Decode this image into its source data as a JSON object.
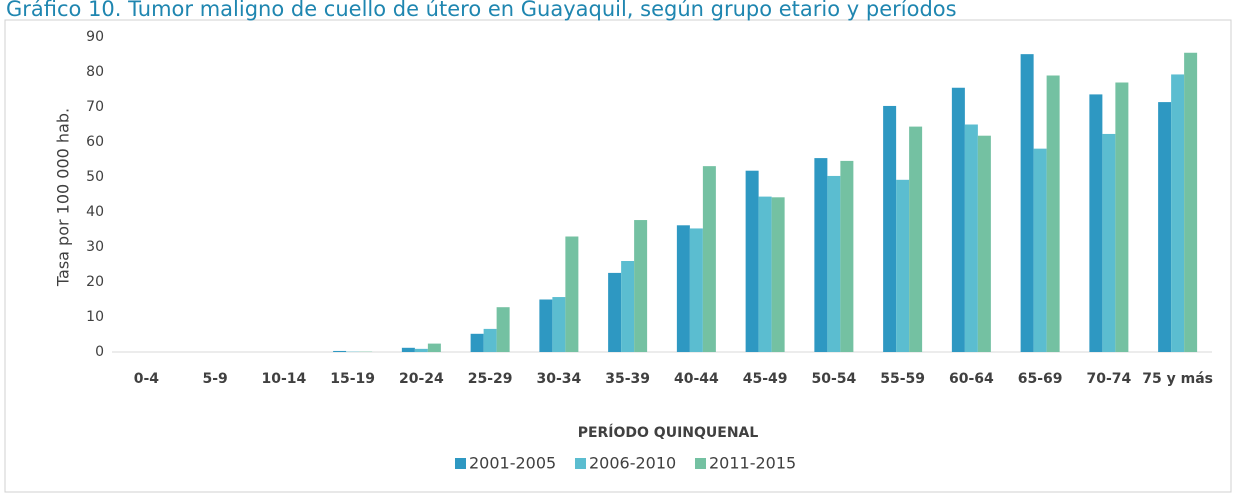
{
  "chart_data": {
    "type": "bar",
    "title": "Gráfico 10. Tumor maligno de cuello de útero en Guayaquil, según grupo etario y períodos",
    "x_label": "PERÍODO QUINQUENAL",
    "y_label": "Tasa por 100 000 hab.",
    "categories": [
      "0-4",
      "5-9",
      "10-14",
      "15-19",
      "20-24",
      "25-29",
      "30-34",
      "35-39",
      "40-44",
      "45-49",
      "50-54",
      "55-59",
      "60-64",
      "65-69",
      "70-74",
      "75 y más"
    ],
    "series": [
      {
        "name": "2001-2005",
        "color": "#2e98c2",
        "values": [
          0,
          0,
          0,
          0.3,
          1.2,
          5.2,
          15,
          22.6,
          36.2,
          51.8,
          55.4,
          70.3,
          75.5,
          85.1,
          73.6,
          71.4
        ]
      },
      {
        "name": "2006-2010",
        "color": "#5bbdd0",
        "values": [
          0,
          0,
          0,
          0.1,
          0.9,
          6.6,
          15.7,
          26,
          35.3,
          44.4,
          50.3,
          49.2,
          65,
          58.1,
          62.3,
          79.3
        ]
      },
      {
        "name": "2011-2015",
        "color": "#74c1a2",
        "values": [
          0,
          0,
          0,
          0.1,
          2.4,
          12.8,
          33,
          37.7,
          53.1,
          44.2,
          54.6,
          64.4,
          61.8,
          79,
          77,
          85.5
        ]
      }
    ],
    "ylim": [
      0,
      90
    ],
    "yticks": [
      0,
      10,
      20,
      30,
      40,
      50,
      60,
      70,
      80,
      90
    ],
    "legend": "bottom"
  }
}
